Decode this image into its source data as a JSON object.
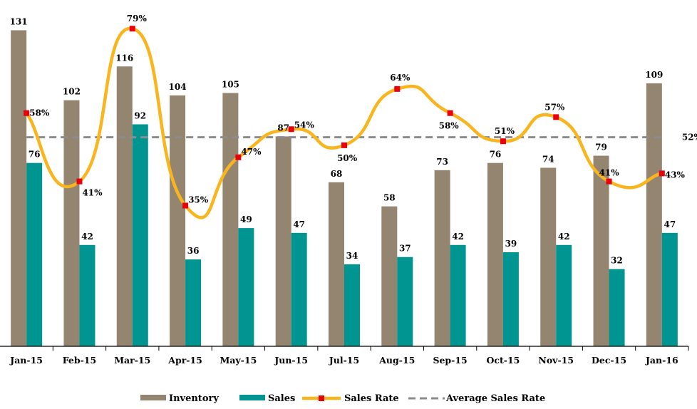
{
  "chart_data": {
    "type": "bar",
    "categories": [
      "Jan-15",
      "Feb-15",
      "Mar-15",
      "Apr-15",
      "May-15",
      "Jun-15",
      "Jul-15",
      "Aug-15",
      "Sep-15",
      "Oct-15",
      "Nov-15",
      "Dec-15",
      "Jan-16"
    ],
    "series": [
      {
        "name": "Inventory",
        "type": "bar",
        "values": [
          131,
          102,
          116,
          104,
          105,
          87,
          68,
          58,
          73,
          76,
          74,
          79,
          109
        ],
        "color": "#938570"
      },
      {
        "name": "Sales",
        "type": "bar",
        "values": [
          76,
          42,
          92,
          36,
          49,
          47,
          34,
          37,
          42,
          39,
          42,
          32,
          47
        ],
        "color": "#009590"
      },
      {
        "name": "Sales Rate",
        "type": "line",
        "axis": "secondary",
        "values": [
          58,
          41,
          79,
          35,
          47,
          54,
          50,
          64,
          58,
          51,
          57,
          41,
          43
        ],
        "labels": [
          "58%",
          "41%",
          "79%",
          "35%",
          "47%",
          "54%",
          "50%",
          "64%",
          "58%",
          "51%",
          "57%",
          "41%",
          "43%"
        ],
        "color": "#F9B51D",
        "marker_color": "#E8000B"
      },
      {
        "name": "Average Sales Rate",
        "type": "line",
        "axis": "secondary",
        "style": "dashed",
        "value": 52,
        "label": "52%",
        "color": "#8C8C8C"
      }
    ],
    "ylim": [
      0,
      140
    ],
    "y2lim": [
      0,
      84
    ],
    "title": "",
    "xlabel": "",
    "ylabel": "",
    "grid": false,
    "legend_position": "bottom"
  }
}
